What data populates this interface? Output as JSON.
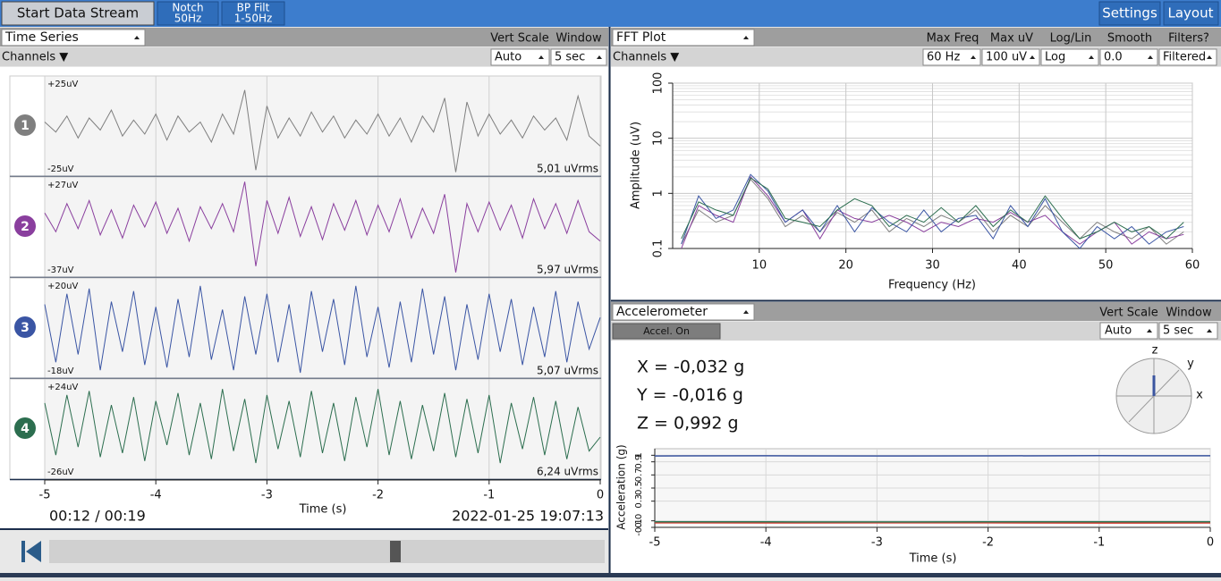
{
  "toolbar": {
    "start": "Start Data Stream",
    "notch": "Notch",
    "notch_value": "50Hz",
    "bp": "BP Filt",
    "bp_value": "1-50Hz",
    "settings": "Settings",
    "layout": "Layout"
  },
  "time_series": {
    "title": "Time Series",
    "vert_scale": "Vert Scale",
    "window": "Window",
    "channels": "Channels ▼",
    "vert_scale_value": "Auto",
    "window_value": "5 sec",
    "playback_time": "00:12 / 00:19",
    "timestamp": "2022-01-25 19:07:13"
  },
  "fft_panel": {
    "title": "FFT Plot",
    "channels": "Channels ▼",
    "controls": [
      {
        "label": "Max Freq",
        "value": "60 Hz"
      },
      {
        "label": "Max uV",
        "value": "100 uV"
      },
      {
        "label": "Log/Lin",
        "value": "Log"
      },
      {
        "label": "Smooth",
        "value": "0.0"
      },
      {
        "label": "Filters?",
        "value": "Filtered"
      }
    ]
  },
  "accel_panel": {
    "title": "Accelerometer",
    "vert_scale": "Vert Scale",
    "window": "Window",
    "accel_on": "Accel. On",
    "vert_scale_value": "Auto",
    "window_value": "5 sec",
    "compass_labels": [
      "z",
      "y",
      "x"
    ]
  },
  "chart_data": [
    {
      "type": "line",
      "xlabel": "Time (s)",
      "xlim": [
        -5,
        0
      ],
      "xticks": [
        -5,
        -4,
        -3,
        -2,
        -1,
        0
      ],
      "grid": true,
      "x": [
        -5,
        -4.9,
        -4.8,
        -4.7,
        -4.6,
        -4.5,
        -4.4,
        -4.3,
        -4.2,
        -4.1,
        -4,
        -3.9,
        -3.8,
        -3.7,
        -3.6,
        -3.5,
        -3.4,
        -3.3,
        -3.2,
        -3.1,
        -3,
        -2.9,
        -2.8,
        -2.7,
        -2.6,
        -2.5,
        -2.4,
        -2.3,
        -2.2,
        -2.1,
        -2,
        -1.9,
        -1.8,
        -1.7,
        -1.6,
        -1.5,
        -1.4,
        -1.3,
        -1.2,
        -1.1,
        -1,
        -0.9,
        -0.8,
        -0.7,
        -0.6,
        -0.5,
        -0.4,
        -0.3,
        -0.2,
        -0.1,
        0
      ],
      "series": [
        {
          "name": "1",
          "color": "#7f7f7f",
          "ylim": [
            -25,
            25
          ],
          "top_label": "+25uV",
          "bottom_label": "-25uV",
          "rms_label": "5,01 uVrms",
          "values": [
            2,
            -3,
            5,
            -6,
            4,
            -2,
            8,
            -5,
            3,
            -4,
            6,
            -7,
            5,
            -3,
            2,
            -8,
            6,
            -4,
            18,
            -22,
            10,
            -6,
            4,
            -5,
            7,
            -3,
            5,
            -6,
            3,
            -4,
            6,
            -5,
            4,
            -8,
            5,
            -3,
            14,
            -23,
            12,
            -5,
            6,
            -4,
            3,
            -6,
            5,
            -2,
            4,
            -7,
            15,
            -5,
            -10
          ]
        },
        {
          "name": "2",
          "color": "#8a3f9e",
          "ylim": [
            -37,
            27
          ],
          "top_label": "+27uV",
          "bottom_label": "-37uV",
          "rms_label": "5,97 uVrms",
          "values": [
            4,
            -8,
            10,
            -6,
            12,
            -10,
            6,
            -12,
            9,
            -5,
            11,
            -9,
            7,
            -14,
            8,
            -6,
            10,
            -8,
            24,
            -30,
            12,
            -9,
            14,
            -11,
            8,
            -13,
            10,
            -7,
            12,
            -10,
            9,
            -8,
            13,
            -12,
            7,
            -9,
            16,
            -34,
            10,
            -8,
            11,
            -7,
            9,
            -12,
            13,
            -6,
            10,
            -9,
            12,
            -8,
            -14
          ]
        },
        {
          "name": "3",
          "color": "#3a55a4",
          "ylim": [
            -18,
            20
          ],
          "top_label": "+20uV",
          "bottom_label": "-18uV",
          "rms_label": "5,07 uVrms",
          "values": [
            10,
            -12,
            14,
            -9,
            16,
            -15,
            11,
            -8,
            15,
            -13,
            9,
            -14,
            12,
            -10,
            17,
            -11,
            8,
            -15,
            13,
            -9,
            14,
            -12,
            10,
            -16,
            15,
            -8,
            12,
            -13,
            17,
            -10,
            9,
            -14,
            11,
            -12,
            16,
            -9,
            13,
            -15,
            10,
            -11,
            14,
            -8,
            12,
            -13,
            9,
            -10,
            15,
            -12,
            11,
            -7,
            5
          ]
        },
        {
          "name": "4",
          "color": "#2c6e4f",
          "ylim": [
            -26,
            24
          ],
          "top_label": "+24uV",
          "bottom_label": "-26uV",
          "rms_label": "6,24 uVrms",
          "values": [
            12,
            -14,
            16,
            -10,
            18,
            -15,
            11,
            -13,
            15,
            -17,
            13,
            -9,
            17,
            -14,
            12,
            -16,
            19,
            -12,
            14,
            -18,
            16,
            -11,
            13,
            -15,
            18,
            -13,
            12,
            -17,
            15,
            -10,
            19,
            -14,
            13,
            -16,
            11,
            -12,
            17,
            -15,
            14,
            -13,
            16,
            -18,
            12,
            -11,
            15,
            -14,
            13,
            -16,
            10,
            -12,
            -5
          ]
        }
      ]
    },
    {
      "type": "line",
      "ylabel": "Amplitude (uV)",
      "xlabel": "Frequency (Hz)",
      "log_y": true,
      "grid": true,
      "xlim": [
        0,
        60
      ],
      "ylim": [
        0.1,
        100
      ],
      "xticks": [
        10,
        20,
        30,
        40,
        50,
        60
      ],
      "yticks": [
        0.1,
        1,
        10,
        100
      ],
      "minor_grid": [
        0.2,
        0.3,
        0.4,
        0.5,
        0.6,
        0.7,
        0.8,
        0.9,
        2,
        3,
        4,
        5,
        6,
        7,
        8,
        9,
        20,
        30,
        40,
        50,
        60,
        70,
        80,
        90
      ],
      "x": [
        1,
        3,
        5,
        7,
        9,
        11,
        13,
        15,
        17,
        19,
        21,
        23,
        25,
        27,
        29,
        31,
        33,
        35,
        37,
        39,
        41,
        43,
        45,
        47,
        49,
        51,
        53,
        55,
        57,
        59
      ],
      "series": [
        {
          "color": "#7f7f7f",
          "values": [
            0.12,
            0.5,
            0.3,
            0.4,
            1.8,
            0.8,
            0.25,
            0.4,
            0.2,
            0.45,
            0.3,
            0.5,
            0.2,
            0.35,
            0.25,
            0.4,
            0.3,
            0.5,
            0.2,
            0.4,
            0.25,
            0.6,
            0.3,
            0.15,
            0.3,
            0.2,
            0.15,
            0.25,
            0.12,
            0.2
          ]
        },
        {
          "color": "#8a3f9e",
          "values": [
            0.1,
            0.6,
            0.4,
            0.3,
            2.0,
            0.9,
            0.3,
            0.5,
            0.15,
            0.5,
            0.35,
            0.3,
            0.4,
            0.3,
            0.2,
            0.3,
            0.25,
            0.35,
            0.3,
            0.45,
            0.3,
            0.4,
            0.2,
            0.12,
            0.2,
            0.3,
            0.12,
            0.2,
            0.15,
            0.18
          ]
        },
        {
          "color": "#3a55a4",
          "values": [
            0.12,
            0.9,
            0.35,
            0.5,
            2.2,
            1.1,
            0.3,
            0.5,
            0.2,
            0.6,
            0.2,
            0.55,
            0.3,
            0.2,
            0.5,
            0.2,
            0.35,
            0.4,
            0.15,
            0.6,
            0.25,
            0.8,
            0.2,
            0.1,
            0.25,
            0.15,
            0.25,
            0.12,
            0.2,
            0.25
          ]
        },
        {
          "color": "#2c6e4f",
          "values": [
            0.15,
            0.7,
            0.5,
            0.4,
            1.9,
            1.2,
            0.35,
            0.3,
            0.25,
            0.5,
            0.8,
            0.6,
            0.25,
            0.4,
            0.3,
            0.55,
            0.3,
            0.6,
            0.25,
            0.5,
            0.3,
            0.9,
            0.35,
            0.15,
            0.2,
            0.3,
            0.2,
            0.25,
            0.15,
            0.3
          ]
        }
      ]
    },
    {
      "type": "line",
      "ylabel": "Acceleration (g)",
      "xlabel": "Time (s)",
      "grid": true,
      "xlim": [
        -5,
        0
      ],
      "ylim": [
        -0.1,
        1.1
      ],
      "xticks": [
        -5,
        -4,
        -3,
        -2,
        -1,
        0
      ],
      "yticks": [
        -0.1,
        {
          "value": 0,
          "label": "0.0"
        },
        0.3,
        0.5,
        0.7,
        0.9,
        1
      ],
      "x": [
        -5,
        -4,
        -3,
        -2,
        -1,
        0
      ],
      "series": [
        {
          "label": "X = -0,032 g",
          "color": "#d9362b",
          "values": [
            -0.03,
            -0.032,
            -0.03,
            -0.031,
            -0.033,
            -0.032
          ]
        },
        {
          "label": "Y = -0,016 g",
          "color": "#2e7d5b",
          "values": [
            -0.015,
            -0.016,
            -0.017,
            -0.016,
            -0.015,
            -0.016
          ]
        },
        {
          "label": "Z = 0,992 g",
          "color": "#3b55a0",
          "values": [
            0.99,
            0.992,
            0.99,
            0.991,
            0.993,
            0.992
          ]
        }
      ]
    }
  ]
}
